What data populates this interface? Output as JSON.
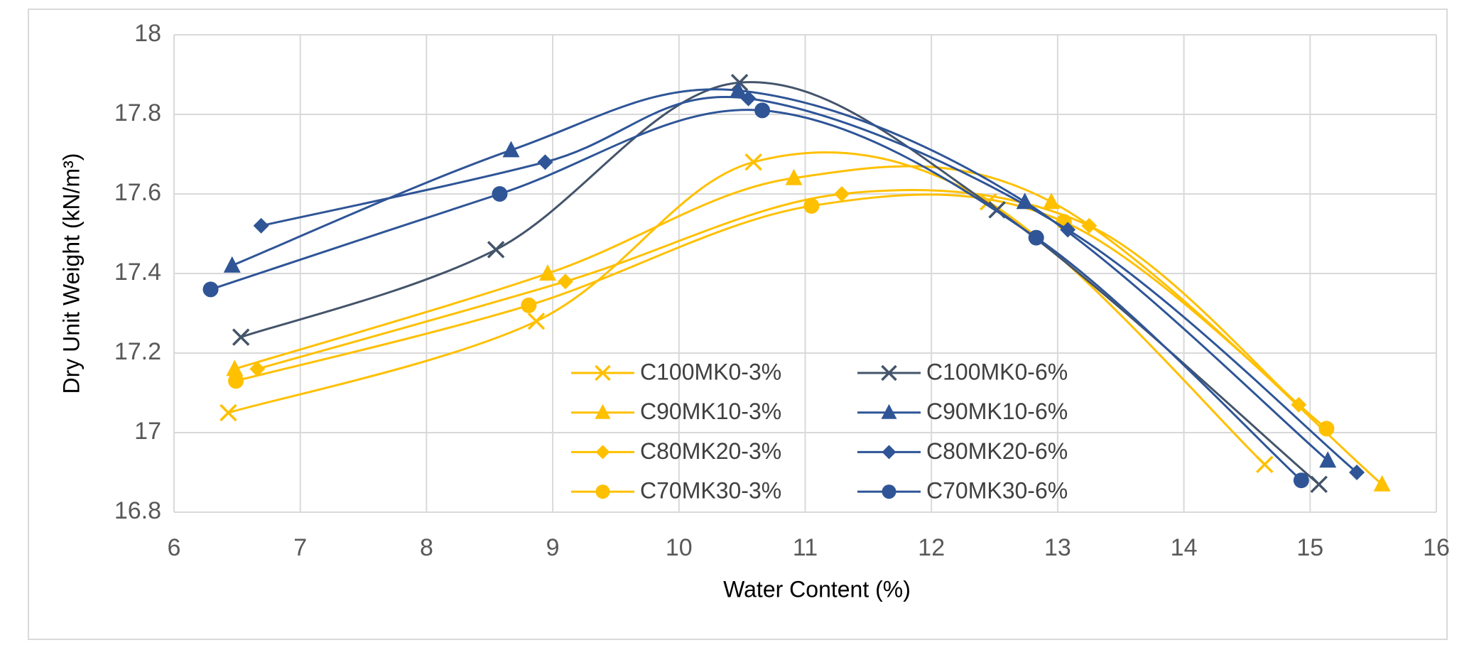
{
  "chart_data": {
    "type": "line",
    "x_label": "Water Content (%)",
    "y_label": "Dry Unit Weight (kN/m³)",
    "xlim": [
      6,
      16
    ],
    "xticks": [
      6,
      7,
      8,
      9,
      10,
      11,
      12,
      13,
      14,
      15,
      16
    ],
    "ylim": [
      16.8,
      18
    ],
    "yticks": [
      16.8,
      17,
      17.2,
      17.4,
      17.6,
      17.8,
      18
    ],
    "grid": true,
    "smooth": true,
    "series": [
      {
        "name": "C100MK0-3%",
        "color": "#FFC000",
        "marker": "x",
        "x": [
          6.43,
          8.87,
          10.59,
          12.45,
          14.64
        ],
        "values": [
          17.05,
          17.28,
          17.68,
          17.58,
          16.92
        ]
      },
      {
        "name": "C90MK10-3%",
        "color": "#FFC000",
        "marker": "triangle",
        "x": [
          6.48,
          8.96,
          10.91,
          12.95,
          15.57
        ],
        "values": [
          17.16,
          17.4,
          17.64,
          17.58,
          16.87
        ]
      },
      {
        "name": "C80MK20-3%",
        "color": "#FFC000",
        "marker": "diamond",
        "x": [
          6.66,
          9.1,
          11.29,
          13.25,
          14.91
        ],
        "values": [
          17.16,
          17.38,
          17.6,
          17.52,
          17.07
        ]
      },
      {
        "name": "C70MK30-3%",
        "color": "#FFC000",
        "marker": "circle",
        "x": [
          6.49,
          8.81,
          11.05,
          13.05,
          15.13
        ],
        "values": [
          17.13,
          17.32,
          17.57,
          17.53,
          17.01
        ]
      },
      {
        "name": "C100MK0-6%",
        "color": "#44546A",
        "marker": "x",
        "x": [
          6.53,
          8.55,
          10.48,
          12.52,
          15.07
        ],
        "values": [
          17.24,
          17.46,
          17.88,
          17.56,
          16.87
        ]
      },
      {
        "name": "C90MK10-6%",
        "color": "#2F5597",
        "marker": "triangle",
        "x": [
          6.46,
          8.67,
          10.47,
          12.74,
          15.14
        ],
        "values": [
          17.42,
          17.71,
          17.86,
          17.58,
          16.93
        ]
      },
      {
        "name": "C80MK20-6%",
        "color": "#2F5597",
        "marker": "diamond",
        "x": [
          6.69,
          8.94,
          10.55,
          13.08,
          15.37
        ],
        "values": [
          17.52,
          17.68,
          17.84,
          17.51,
          16.9
        ]
      },
      {
        "name": "C70MK30-6%",
        "color": "#2F5597",
        "marker": "circle",
        "x": [
          6.29,
          8.58,
          10.66,
          12.83,
          14.93
        ],
        "values": [
          17.36,
          17.6,
          17.81,
          17.49,
          16.88
        ]
      }
    ]
  }
}
